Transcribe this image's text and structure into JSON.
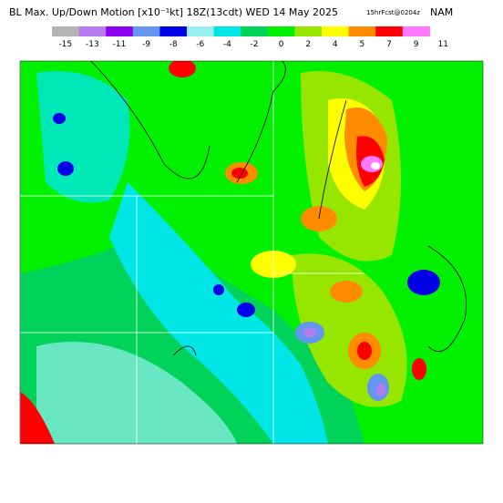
{
  "header": {
    "title": "BL Max. Up/Down Motion [x10⁻¹kt] 18Z(13cdt) WED 14 May 2025",
    "forecast": "15hrFcst@0204z",
    "model": "NAM"
  },
  "colorbar": {
    "labels": [
      "-15",
      "-13",
      "-11",
      "-9",
      "-8",
      "-6",
      "-4",
      "-2",
      "0",
      "2",
      "4",
      "5",
      "7",
      "9",
      "11"
    ],
    "colors": [
      "#b4b4b4",
      "#b47cf0",
      "#8c00f0",
      "#6496f0",
      "#0000e6",
      "#96f0f0",
      "#00e6e6",
      "#00d25a",
      "#00f000",
      "#96e600",
      "#ffff00",
      "#ff8c00",
      "#ff0000",
      "#ff78ff"
    ]
  }
}
